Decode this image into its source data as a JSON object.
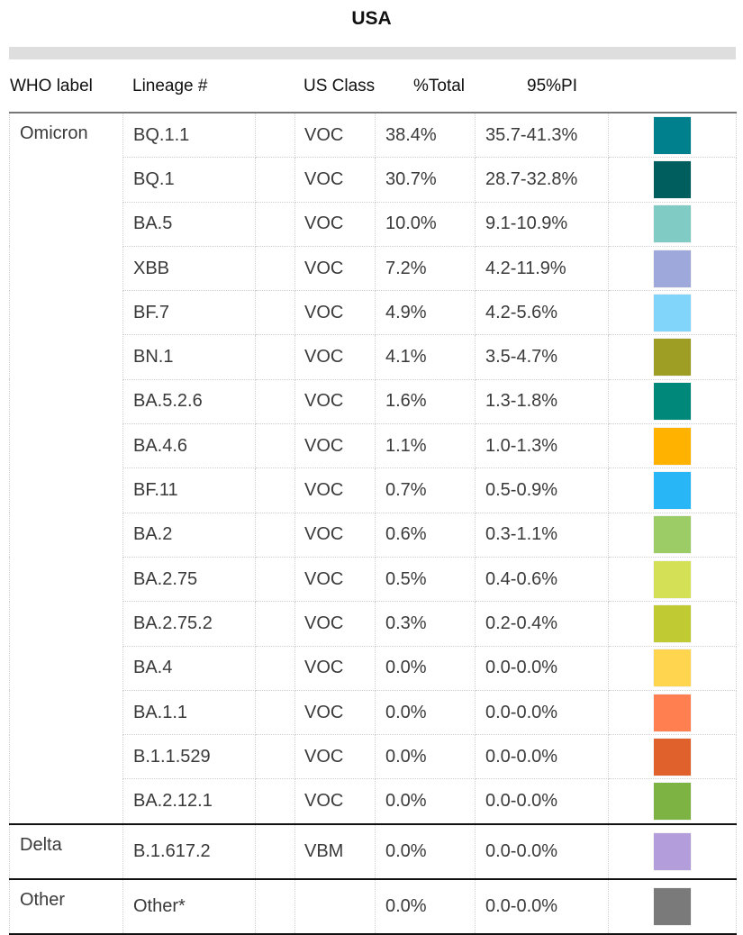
{
  "title": "USA",
  "headers": {
    "who_label": "WHO label",
    "lineage": "Lineage #",
    "us_class": "US Class",
    "total": "%Total",
    "pi": "95%PI"
  },
  "groups": [
    {
      "who": "Omicron",
      "rows": [
        {
          "lineage": "BQ.1.1",
          "class": "VOC",
          "total": "38.4%",
          "pi": "35.7-41.3%",
          "color": "#00808C"
        },
        {
          "lineage": "BQ.1",
          "class": "VOC",
          "total": "30.7%",
          "pi": "28.7-32.8%",
          "color": "#005E5E"
        },
        {
          "lineage": "BA.5",
          "class": "VOC",
          "total": "10.0%",
          "pi": "9.1-10.9%",
          "color": "#80CBC4"
        },
        {
          "lineage": "XBB",
          "class": "VOC",
          "total": "7.2%",
          "pi": "4.2-11.9%",
          "color": "#9FA8DA"
        },
        {
          "lineage": "BF.7",
          "class": "VOC",
          "total": "4.9%",
          "pi": "4.2-5.6%",
          "color": "#81D4FA"
        },
        {
          "lineage": "BN.1",
          "class": "VOC",
          "total": "4.1%",
          "pi": "3.5-4.7%",
          "color": "#9E9D24"
        },
        {
          "lineage": "BA.5.2.6",
          "class": "VOC",
          "total": "1.6%",
          "pi": "1.3-1.8%",
          "color": "#00897B"
        },
        {
          "lineage": "BA.4.6",
          "class": "VOC",
          "total": "1.1%",
          "pi": "1.0-1.3%",
          "color": "#FFB300"
        },
        {
          "lineage": "BF.11",
          "class": "VOC",
          "total": "0.7%",
          "pi": "0.5-0.9%",
          "color": "#29B6F6"
        },
        {
          "lineage": "BA.2",
          "class": "VOC",
          "total": "0.6%",
          "pi": "0.3-1.1%",
          "color": "#9CCC65"
        },
        {
          "lineage": "BA.2.75",
          "class": "VOC",
          "total": "0.5%",
          "pi": "0.4-0.6%",
          "color": "#D4E157"
        },
        {
          "lineage": "BA.2.75.2",
          "class": "VOC",
          "total": "0.3%",
          "pi": "0.2-0.4%",
          "color": "#C0CA33"
        },
        {
          "lineage": "BA.4",
          "class": "VOC",
          "total": "0.0%",
          "pi": "0.0-0.0%",
          "color": "#FFD54F"
        },
        {
          "lineage": "BA.1.1",
          "class": "VOC",
          "total": "0.0%",
          "pi": "0.0-0.0%",
          "color": "#FF7F50"
        },
        {
          "lineage": "B.1.1.529",
          "class": "VOC",
          "total": "0.0%",
          "pi": "0.0-0.0%",
          "color": "#E0612B"
        },
        {
          "lineage": "BA.2.12.1",
          "class": "VOC",
          "total": "0.0%",
          "pi": "0.0-0.0%",
          "color": "#7CB342"
        }
      ]
    },
    {
      "who": "Delta",
      "rows": [
        {
          "lineage": "B.1.617.2",
          "class": "VBM",
          "total": "0.0%",
          "pi": "0.0-0.0%",
          "color": "#B39DDB"
        }
      ]
    },
    {
      "who": "Other",
      "rows": [
        {
          "lineage": "Other*",
          "class": "",
          "total": "0.0%",
          "pi": "0.0-0.0%",
          "color": "#7A7A7A"
        }
      ]
    }
  ]
}
